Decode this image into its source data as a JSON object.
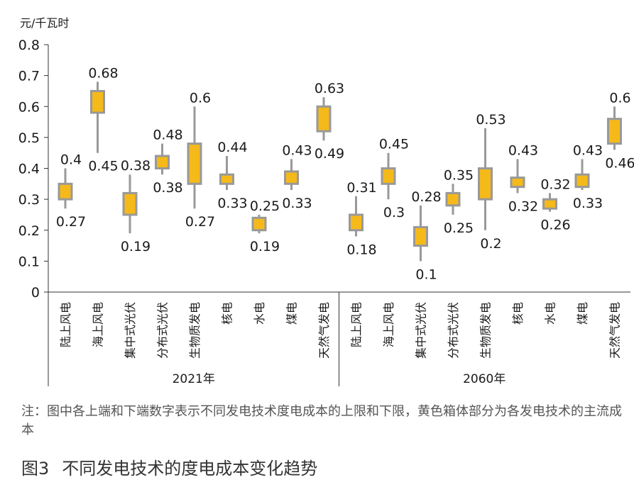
{
  "chart_data": {
    "type": "box",
    "y_unit": "元/千瓦时",
    "ylim": [
      0,
      0.8
    ],
    "yticks": [
      "0",
      "0.1",
      "0.2",
      "0.3",
      "0.4",
      "0.5",
      "0.6",
      "0.7",
      "0.8"
    ],
    "grid": false,
    "colors": {
      "box": "#F5B91A",
      "outline": "#999999",
      "axis": "#333333"
    },
    "groups": [
      {
        "name": "2021年",
        "items": [
          {
            "category": "陆上风电",
            "low": 0.27,
            "high": 0.4,
            "box_low": 0.3,
            "box_high": 0.35,
            "low_label": "0.27",
            "high_label": "0.4"
          },
          {
            "category": "海上风电",
            "low": 0.45,
            "high": 0.68,
            "box_low": 0.58,
            "box_high": 0.65,
            "low_label": "0.45",
            "high_label": "0.68"
          },
          {
            "category": "集中式光伏",
            "low": 0.19,
            "high": 0.38,
            "box_low": 0.25,
            "box_high": 0.32,
            "low_label": "0.19",
            "high_label": "0.38"
          },
          {
            "category": "分布式光伏",
            "low": 0.38,
            "high": 0.48,
            "box_low": 0.4,
            "box_high": 0.44,
            "low_label": "0.38",
            "high_label": "0.48"
          },
          {
            "category": "生物质发电",
            "low": 0.27,
            "high": 0.6,
            "box_low": 0.35,
            "box_high": 0.48,
            "low_label": "0.27",
            "high_label": "0.6"
          },
          {
            "category": "核电",
            "low": 0.33,
            "high": 0.44,
            "box_low": 0.35,
            "box_high": 0.38,
            "low_label": "0.33",
            "high_label": "0.44"
          },
          {
            "category": "水电",
            "low": 0.19,
            "high": 0.25,
            "box_low": 0.2,
            "box_high": 0.24,
            "low_label": "0.19",
            "high_label": "0.25"
          },
          {
            "category": "煤电",
            "low": 0.33,
            "high": 0.43,
            "box_low": 0.35,
            "box_high": 0.39,
            "low_label": "0.33",
            "high_label": "0.43"
          },
          {
            "category": "天然气发电",
            "low": 0.49,
            "high": 0.63,
            "box_low": 0.52,
            "box_high": 0.6,
            "low_label": "0.49",
            "high_label": "0.63"
          }
        ]
      },
      {
        "name": "2060年",
        "items": [
          {
            "category": "陆上风电",
            "low": 0.18,
            "high": 0.31,
            "box_low": 0.2,
            "box_high": 0.25,
            "low_label": "0.18",
            "high_label": "0.31"
          },
          {
            "category": "海上风电",
            "low": 0.3,
            "high": 0.45,
            "box_low": 0.35,
            "box_high": 0.4,
            "low_label": "0.3",
            "high_label": "0.45"
          },
          {
            "category": "集中式光伏",
            "low": 0.1,
            "high": 0.28,
            "box_low": 0.15,
            "box_high": 0.21,
            "low_label": "0.1",
            "high_label": "0.28"
          },
          {
            "category": "分布式光伏",
            "low": 0.25,
            "high": 0.35,
            "box_low": 0.28,
            "box_high": 0.32,
            "low_label": "0.25",
            "high_label": "0.35"
          },
          {
            "category": "生物质发电",
            "low": 0.2,
            "high": 0.53,
            "box_low": 0.3,
            "box_high": 0.4,
            "low_label": "0.2",
            "high_label": "0.53"
          },
          {
            "category": "核电",
            "low": 0.32,
            "high": 0.43,
            "box_low": 0.34,
            "box_high": 0.37,
            "low_label": "0.32",
            "high_label": "0.43"
          },
          {
            "category": "水电",
            "low": 0.26,
            "high": 0.32,
            "box_low": 0.27,
            "box_high": 0.3,
            "low_label": "0.26",
            "high_label": "0.32"
          },
          {
            "category": "煤电",
            "low": 0.33,
            "high": 0.43,
            "box_low": 0.34,
            "box_high": 0.38,
            "low_label": "0.33",
            "high_label": "0.43"
          },
          {
            "category": "天然气发电",
            "low": 0.46,
            "high": 0.6,
            "box_low": 0.48,
            "box_high": 0.56,
            "low_label": "0.46",
            "high_label": "0.6"
          }
        ]
      }
    ]
  },
  "note": "注：图中各上端和下端数字表示不同发电技术度电成本的上限和下限，黄色箱体部分为各发电技术的主流成本",
  "caption": {
    "number": "图3",
    "title": "不同发电技术的度电成本变化趋势"
  }
}
